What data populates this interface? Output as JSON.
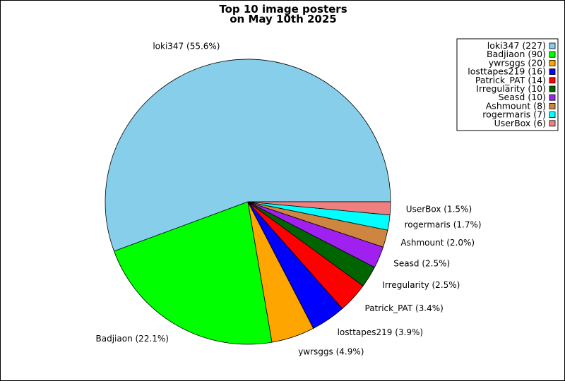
{
  "chart_data": {
    "type": "pie",
    "title": [
      "Top 10 image posters",
      "on May 10th 2025"
    ],
    "legend_position": "top-right",
    "slices": [
      {
        "name": "loki347",
        "value": 227,
        "percent_label": "55.6%",
        "color": "#87ceeb"
      },
      {
        "name": "Badjiaon",
        "value": 90,
        "percent_label": "22.1%",
        "color": "#00ff00"
      },
      {
        "name": "ywrsggs",
        "value": 20,
        "percent_label": "4.9%",
        "color": "#ffa500"
      },
      {
        "name": "losttapes219",
        "value": 16,
        "percent_label": "3.9%",
        "color": "#0000ff"
      },
      {
        "name": "Patrick_PAT",
        "value": 14,
        "percent_label": "3.4%",
        "color": "#ff0000"
      },
      {
        "name": "Irregularity",
        "value": 10,
        "percent_label": "2.5%",
        "color": "#006400"
      },
      {
        "name": "Seasd",
        "value": 10,
        "percent_label": "2.5%",
        "color": "#a020f0"
      },
      {
        "name": "Ashmount",
        "value": 8,
        "percent_label": "2.0%",
        "color": "#cd853f"
      },
      {
        "name": "rogermaris",
        "value": 7,
        "percent_label": "1.7%",
        "color": "#00ffff"
      },
      {
        "name": "UserBox",
        "value": 6,
        "percent_label": "1.5%",
        "color": "#f08080"
      }
    ]
  }
}
